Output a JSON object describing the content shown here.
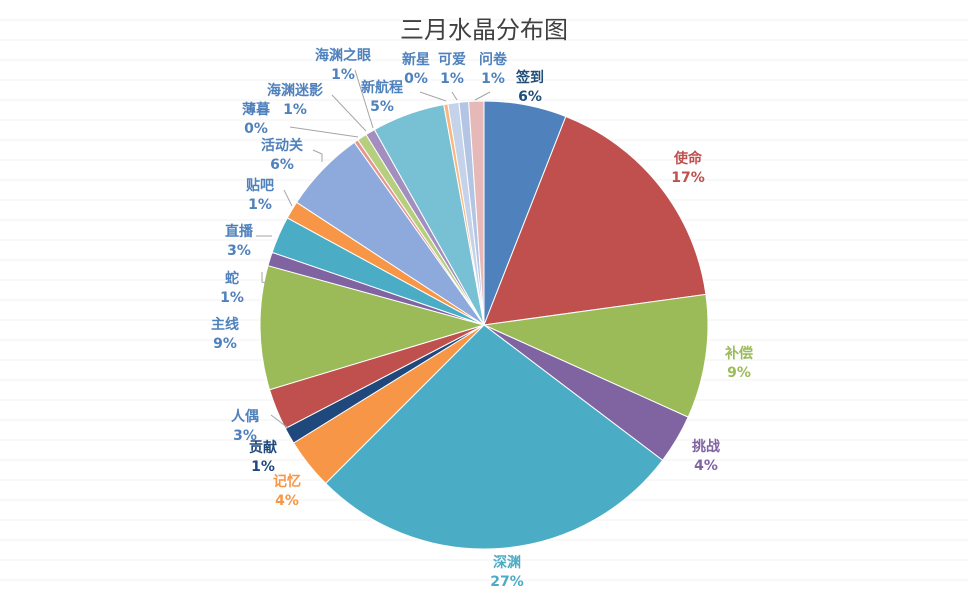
{
  "chart_data": {
    "type": "pie",
    "title": "三月水晶分布图",
    "slices": [
      {
        "name": "签到",
        "pct_label": "6%",
        "value": 6.0,
        "color": "#4F81BD"
      },
      {
        "name": "使命",
        "pct_label": "17%",
        "value": 17.0,
        "color": "#C0504D"
      },
      {
        "name": "补偿",
        "pct_label": "9%",
        "value": 9.0,
        "color": "#9BBB59"
      },
      {
        "name": "挑战",
        "pct_label": "4%",
        "value": 3.6,
        "color": "#8064A2"
      },
      {
        "name": "深渊",
        "pct_label": "27%",
        "value": 27.4,
        "color": "#4BACC6"
      },
      {
        "name": "记忆",
        "pct_label": "4%",
        "value": 3.7,
        "color": "#F79646"
      },
      {
        "name": "贡献",
        "pct_label": "1%",
        "value": 1.2,
        "color": "#1F497D"
      },
      {
        "name": "人偶",
        "pct_label": "3%",
        "value": 3.0,
        "color": "#C0504D"
      },
      {
        "name": "主线",
        "pct_label": "9%",
        "value": 9.0,
        "color": "#9BBB59"
      },
      {
        "name": "蛇",
        "pct_label": "1%",
        "value": 1.0,
        "color": "#8064A2"
      },
      {
        "name": "直播",
        "pct_label": "3%",
        "value": 2.7,
        "color": "#4BACC6"
      },
      {
        "name": "贴吧",
        "pct_label": "1%",
        "value": 1.3,
        "color": "#F79646"
      },
      {
        "name": "活动关",
        "pct_label": "6%",
        "value": 6.0,
        "color": "#8EA9DB"
      },
      {
        "name": "薄暮",
        "pct_label": "0%",
        "value": 0.3,
        "color": "#E6958F"
      },
      {
        "name": "海渊迷影",
        "pct_label": "1%",
        "value": 0.7,
        "color": "#B5CF7F"
      },
      {
        "name": "海渊之眼",
        "pct_label": "1%",
        "value": 0.7,
        "color": "#A28FBF"
      },
      {
        "name": "新航程",
        "pct_label": "5%",
        "value": 5.3,
        "color": "#78C0D4"
      },
      {
        "name": "新星",
        "pct_label": "0%",
        "value": 0.3,
        "color": "#F9B67E"
      },
      {
        "name": "可爱",
        "pct_label": "1%",
        "value": 0.8,
        "color": "#C5D3EA"
      },
      {
        "name": "问卷",
        "pct_label": "1%",
        "value": 0.7,
        "color": "#B4C5E4"
      },
      {
        "name": "签到",
        "pct_label": "",
        "value": 1.1,
        "color": "#E6B9B8"
      }
    ],
    "legend": "none",
    "grid": false
  }
}
